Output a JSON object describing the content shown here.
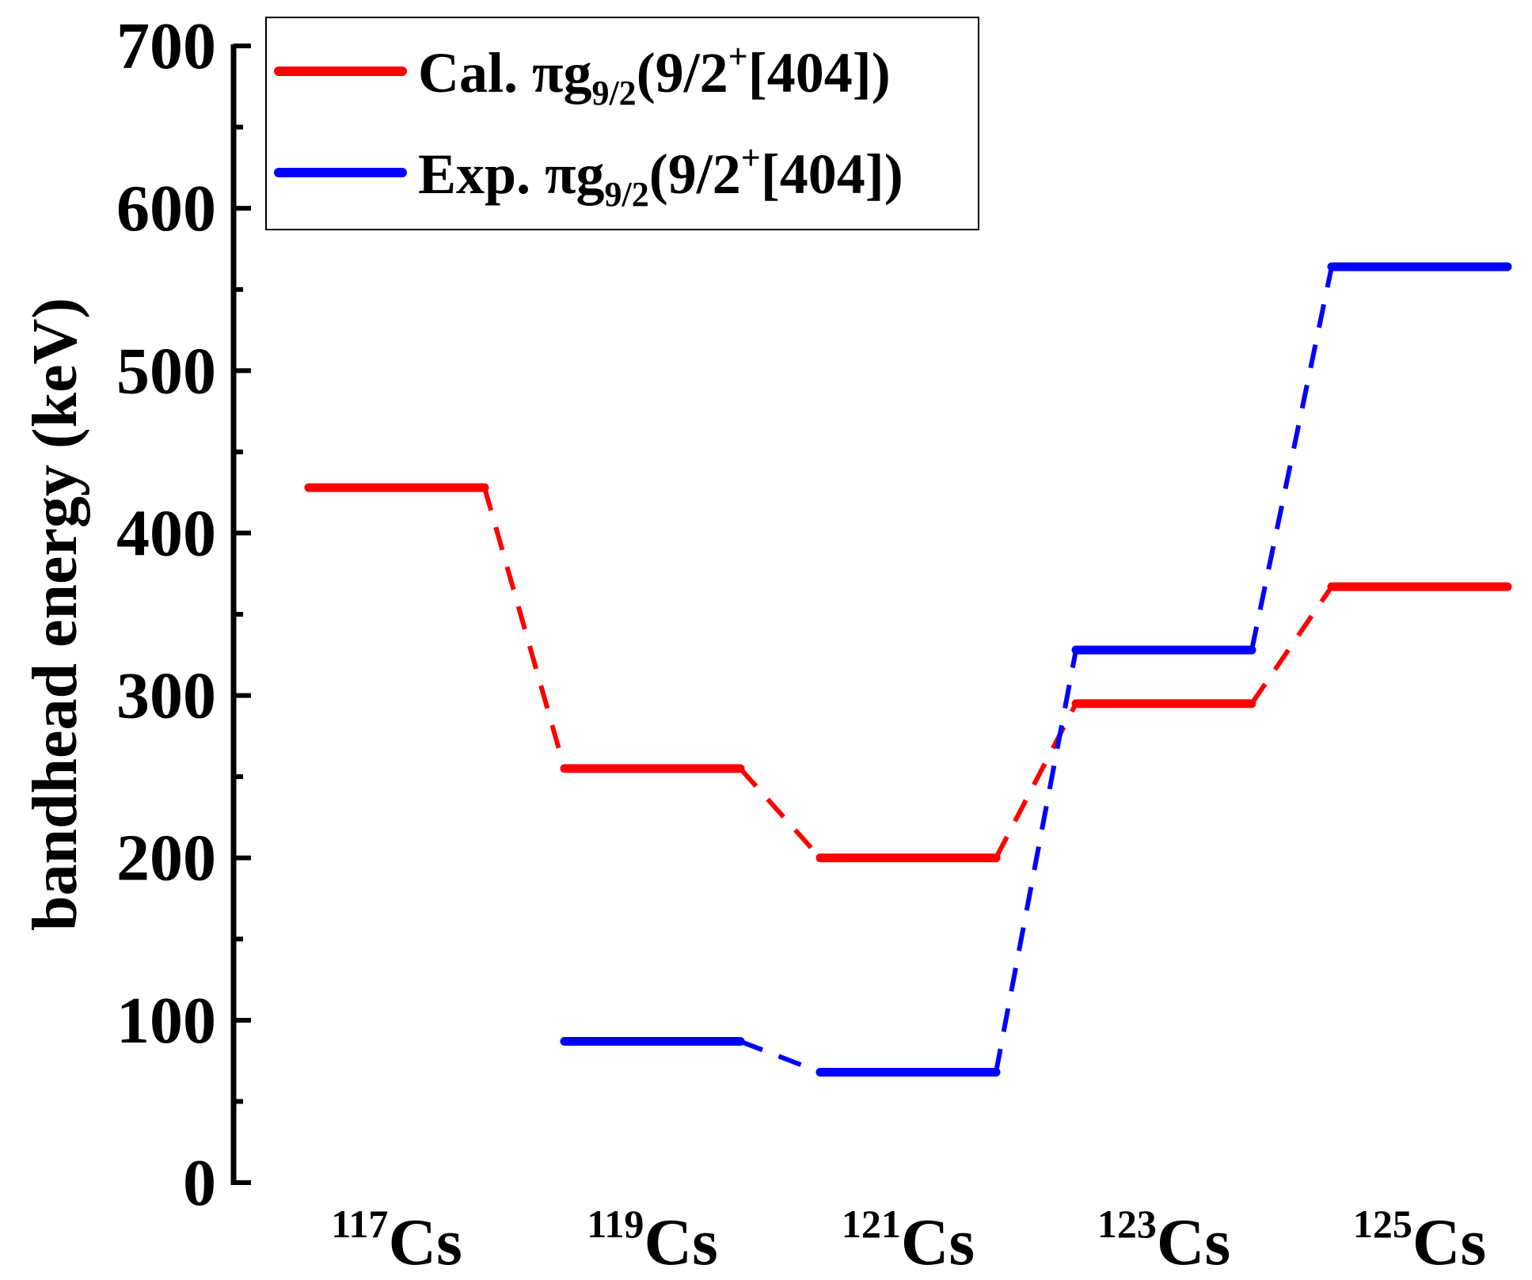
{
  "chart_data": {
    "type": "line",
    "style": "level-diagram",
    "categories": [
      {
        "mass": "117",
        "element": "Cs"
      },
      {
        "mass": "119",
        "element": "Cs"
      },
      {
        "mass": "121",
        "element": "Cs"
      },
      {
        "mass": "123",
        "element": "Cs"
      },
      {
        "mass": "125",
        "element": "Cs"
      }
    ],
    "ylabel": "bandhead energy (keV)",
    "ylim": [
      0,
      700
    ],
    "yticks": [
      0,
      100,
      200,
      300,
      400,
      500,
      600,
      700
    ],
    "grid": false,
    "legend_position": "top-left",
    "series": [
      {
        "name": "Cal. πg9/2(9/2+[404])",
        "legend": {
          "prefix": "Cal. πg",
          "sub": "9/2",
          "mid": "(9/2",
          "sup": "+",
          "suffix": "[404])"
        },
        "color": "#ff0000",
        "values": [
          428,
          255,
          200,
          295,
          367
        ]
      },
      {
        "name": "Exp. πg9/2(9/2+[404])",
        "legend": {
          "prefix": "Exp. πg",
          "sub": "9/2",
          "mid": "(9/2",
          "sup": "+",
          "suffix": "[404])"
        },
        "color": "#0000ff",
        "values": [
          null,
          87,
          68,
          328,
          564
        ]
      }
    ]
  }
}
